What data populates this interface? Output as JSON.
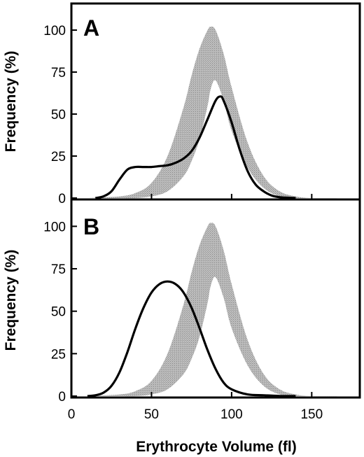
{
  "chart_data": [
    {
      "type": "line",
      "panel": "A",
      "xlabel": "Erythrocyte Volume  (fl)",
      "ylabel": "Frequency  (%)",
      "xlim": [
        0,
        180
      ],
      "ylim": [
        0,
        115
      ],
      "yticks": [
        0,
        25,
        50,
        75,
        100
      ],
      "reference_band": {
        "fill": "#b4b4b4",
        "x": [
          10,
          30,
          40,
          50,
          60,
          70,
          75,
          80,
          85,
          87,
          90,
          95,
          100,
          110,
          120,
          130,
          140,
          150,
          170
        ],
        "upper": [
          0,
          1,
          3,
          9,
          25,
          54,
          73,
          89,
          100,
          102,
          100,
          86,
          66,
          33,
          13,
          4,
          1,
          0,
          0
        ],
        "lower": [
          0,
          0,
          0,
          1,
          4,
          13,
          22,
          35,
          55,
          65,
          70,
          58,
          40,
          18,
          6,
          1,
          0,
          0,
          0
        ]
      },
      "series": [
        {
          "stroke": "#000000",
          "x": [
            15,
            20,
            25,
            30,
            35,
            40,
            45,
            50,
            55,
            60,
            65,
            70,
            75,
            80,
            85,
            90,
            93,
            95,
            100,
            105,
            110,
            115,
            120,
            125,
            130,
            135,
            140
          ],
          "y": [
            0,
            1,
            4,
            11,
            17,
            18.5,
            18.5,
            18.5,
            19,
            19.5,
            21,
            23.5,
            28,
            36,
            47,
            58,
            60.5,
            58,
            45,
            29,
            16,
            8,
            4,
            1.5,
            0.5,
            0.2,
            0
          ]
        }
      ]
    },
    {
      "type": "line",
      "panel": "B",
      "xlabel": "Erythrocyte Volume  (fl)",
      "ylabel": "Frequency  (%)",
      "xlim": [
        0,
        180
      ],
      "ylim": [
        0,
        115
      ],
      "xticks": [
        0,
        50,
        100,
        150
      ],
      "yticks": [
        0,
        25,
        50,
        75,
        100
      ],
      "reference_band": {
        "fill": "#b4b4b4",
        "x": [
          10,
          30,
          40,
          50,
          60,
          70,
          75,
          80,
          85,
          87,
          90,
          95,
          100,
          110,
          120,
          130,
          140,
          150,
          170
        ],
        "upper": [
          0,
          1,
          3,
          9,
          25,
          54,
          73,
          89,
          100,
          102,
          100,
          86,
          66,
          33,
          13,
          4,
          1,
          0,
          0
        ],
        "lower": [
          0,
          0,
          0,
          1,
          4,
          13,
          22,
          35,
          55,
          65,
          70,
          58,
          40,
          18,
          6,
          1,
          0,
          0,
          0
        ]
      },
      "series": [
        {
          "stroke": "#000000",
          "x": [
            10,
            15,
            20,
            25,
            30,
            35,
            40,
            45,
            50,
            55,
            60,
            65,
            70,
            75,
            80,
            85,
            90,
            95,
            100,
            110,
            120,
            130,
            140
          ],
          "y": [
            0,
            0.5,
            2,
            6,
            14,
            26,
            40,
            52,
            61,
            66,
            67.5,
            66,
            61,
            52,
            40,
            27,
            16,
            8,
            4,
            1,
            0.5,
            0.1,
            0
          ]
        }
      ]
    }
  ]
}
